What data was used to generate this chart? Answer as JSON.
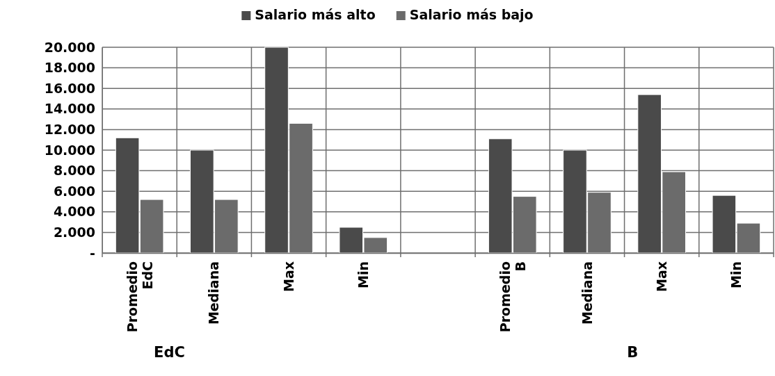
{
  "chart_data": {
    "type": "bar",
    "categories": [
      "Promedio EdC",
      "Mediana",
      "Max",
      "Min",
      null,
      "Promedio B",
      "Mediana",
      "Max",
      "Min"
    ],
    "series": [
      {
        "name": "Salario más alto",
        "color": "#4a4a4a",
        "values": [
          11200,
          10000,
          20000,
          2500,
          null,
          11100,
          10000,
          15400,
          5600
        ]
      },
      {
        "name": "Salario más bajo",
        "color": "#6b6b6b",
        "values": [
          5200,
          5200,
          12600,
          1500,
          null,
          5500,
          5900,
          7900,
          2900
        ]
      }
    ],
    "ylim": [
      0,
      20000
    ],
    "yticks": [
      {
        "value": 0,
        "label": "-"
      },
      {
        "value": 2000,
        "label": "2.000"
      },
      {
        "value": 4000,
        "label": "4.000"
      },
      {
        "value": 6000,
        "label": "6.000"
      },
      {
        "value": 8000,
        "label": "8.000"
      },
      {
        "value": 10000,
        "label": "10.000"
      },
      {
        "value": 12000,
        "label": "12.000"
      },
      {
        "value": 14000,
        "label": "14.000"
      },
      {
        "value": 16000,
        "label": "16.000"
      },
      {
        "value": 18000,
        "label": "18.000"
      },
      {
        "value": 20000,
        "label": "20.000"
      }
    ],
    "grid": true,
    "legend": "top",
    "annotations": [
      "EdC",
      "B"
    ]
  }
}
